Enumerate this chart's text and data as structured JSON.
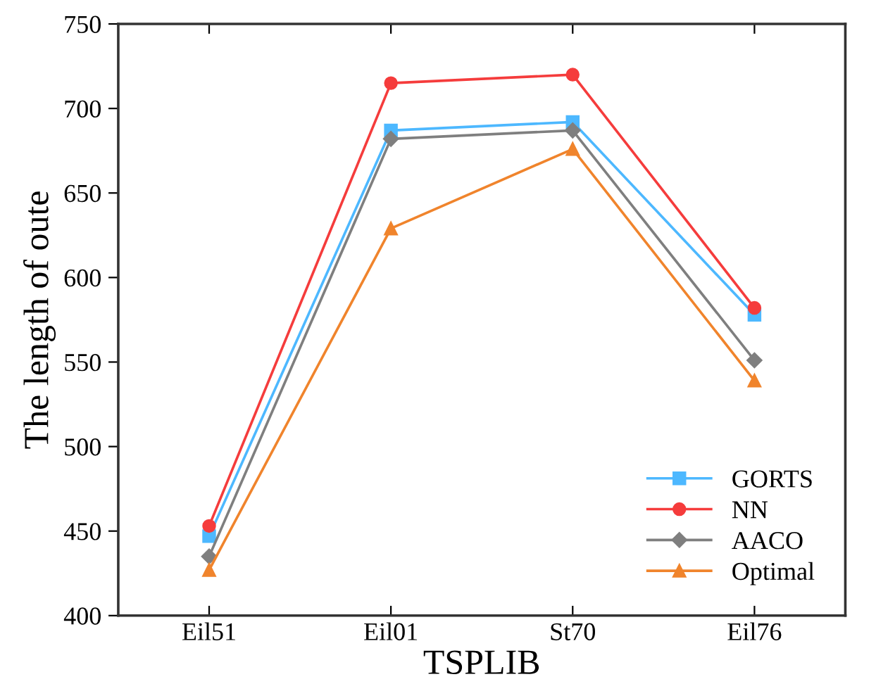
{
  "chart_data": {
    "type": "line",
    "xlabel": "TSPLIB",
    "ylabel": "The length of oute",
    "categories": [
      "Eil51",
      "Eil01",
      "St70",
      "Eil76"
    ],
    "series": [
      {
        "name": "GORTS",
        "color": "#4db8ff",
        "marker": "square",
        "values": [
          447,
          687,
          692,
          578
        ]
      },
      {
        "name": "NN",
        "color": "#f53c3c",
        "marker": "circle",
        "values": [
          453,
          715,
          720,
          582
        ]
      },
      {
        "name": "AACO",
        "color": "#7f7f7f",
        "marker": "diamond",
        "values": [
          435,
          682,
          687,
          551
        ]
      },
      {
        "name": "Optimal",
        "color": "#f0842c",
        "marker": "triangle",
        "values": [
          427,
          629,
          676,
          539
        ]
      }
    ],
    "ylim": [
      400,
      750
    ],
    "yticks": [
      400,
      450,
      500,
      550,
      600,
      650,
      700,
      750
    ],
    "grid": false,
    "legend": "bottom right",
    "line_style": "solid"
  }
}
